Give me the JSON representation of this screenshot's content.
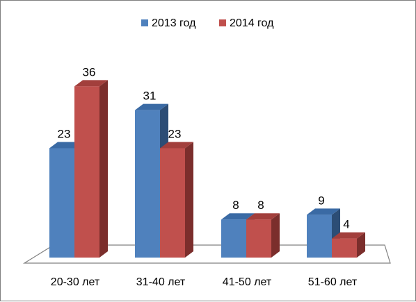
{
  "chart_data": {
    "type": "bar",
    "categories": [
      "20-30 лет",
      "31-40 лет",
      "41-50 лет",
      "51-60 лет"
    ],
    "series": [
      {
        "name": "2013 год",
        "values": [
          23,
          31,
          8,
          9
        ],
        "color": "#4f81bd",
        "side_color": "#2c4d75",
        "top_color": "#3a6aa4"
      },
      {
        "name": "2014 год",
        "values": [
          36,
          23,
          8,
          4
        ],
        "color": "#c0504d",
        "side_color": "#7b2e2c",
        "top_color": "#a23f3c"
      }
    ],
    "ylim": [
      0,
      40
    ],
    "grid": false,
    "legend_position": "top",
    "three_d": true,
    "data_labels": true
  }
}
